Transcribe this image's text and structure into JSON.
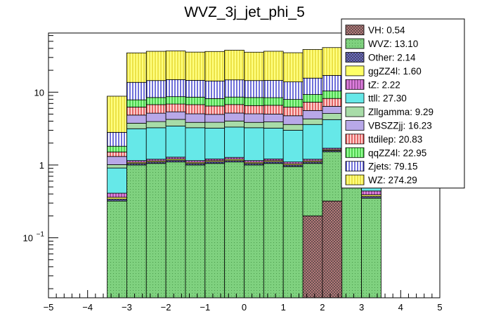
{
  "chart_data": {
    "type": "bar",
    "stacked": true,
    "title": "WVZ_3j_jet_phi_5",
    "xlabel": "",
    "ylabel": "",
    "ylog": true,
    "xlim": [
      -5,
      5
    ],
    "ylim": [
      0.015,
      65
    ],
    "grid": false,
    "legend_position": "top-right",
    "x_ticks": [
      -5,
      -4,
      -3,
      -2,
      -1,
      0,
      1,
      2,
      3,
      4,
      5
    ],
    "x_tick_labels": [
      "−5",
      "−4",
      "−3",
      "−2",
      "−1",
      "0",
      "1",
      "2",
      "3",
      "4",
      "5"
    ],
    "y_ticks": [
      {
        "value": 0.1,
        "base": "10",
        "exp": "−1"
      },
      {
        "value": 1,
        "label": "1"
      },
      {
        "value": 10,
        "label": "10"
      }
    ],
    "bin_edges": [
      -3.5,
      -3,
      -2.5,
      -2,
      -1.5,
      -1,
      -0.5,
      0,
      0.5,
      1,
      1.5,
      2,
      2.5,
      3,
      3.5
    ],
    "series": [
      {
        "name": "VH",
        "legend": "VH: 0.54",
        "fill": "#c08080",
        "pattern": "cross-dense",
        "values": [
          0,
          0,
          0,
          0,
          0,
          0,
          0,
          0,
          0,
          0,
          0.2,
          0.32,
          0,
          0
        ]
      },
      {
        "name": "WVZ",
        "legend": "WVZ: 13.10",
        "fill": "#7fd17f",
        "pattern": "dots",
        "values": [
          0.32,
          1.0,
          1.05,
          1.1,
          1.0,
          1.05,
          1.1,
          1.0,
          1.05,
          0.95,
          0.85,
          1.2,
          1.6,
          0.35
        ]
      },
      {
        "name": "Other",
        "legend": "Other: 2.14",
        "fill": "#6f6fcf",
        "pattern": "cross-dense",
        "values": [
          0.02,
          0.05,
          0.05,
          0.06,
          0.05,
          0.06,
          0.05,
          0.05,
          0.06,
          0.05,
          0.05,
          0.06,
          0.05,
          0.02
        ]
      },
      {
        "name": "ggZZ4l",
        "legend": "ggZZ4l: 1.60",
        "fill": "#ffff66",
        "pattern": "solid",
        "values": [
          0.02,
          0.04,
          0.04,
          0.05,
          0.04,
          0.04,
          0.05,
          0.04,
          0.04,
          0.04,
          0.04,
          0.05,
          0.05,
          0.02
        ]
      },
      {
        "name": "tZ",
        "legend": "tZ: 2.22",
        "fill": "#e080e0",
        "pattern": "hatch-vertical",
        "values": [
          0.05,
          0.06,
          0.06,
          0.07,
          0.06,
          0.06,
          0.07,
          0.06,
          0.06,
          0.06,
          0.06,
          0.07,
          0.07,
          0.05
        ]
      },
      {
        "name": "ttll",
        "legend": "ttll: 27.30",
        "fill": "#66e8e8",
        "pattern": "solid",
        "values": [
          0.5,
          2.0,
          2.05,
          2.15,
          2.1,
          2.0,
          2.05,
          2.1,
          2.0,
          1.9,
          2.4,
          2.5,
          2.4,
          0.4
        ]
      },
      {
        "name": "Zllgamma",
        "legend": "Zllgamma: 9.29",
        "fill": "#a8dca8",
        "pattern": "solid",
        "values": [
          0.1,
          0.6,
          0.7,
          0.8,
          0.6,
          0.65,
          0.7,
          0.6,
          0.7,
          0.6,
          0.7,
          0.9,
          3.0,
          0.2
        ]
      },
      {
        "name": "VBSZZjj",
        "legend": "VBSZZjj: 16.23",
        "fill": "#b8a8e8",
        "pattern": "solid",
        "values": [
          0.3,
          1.1,
          1.2,
          1.15,
          1.2,
          1.1,
          1.15,
          1.2,
          1.1,
          1.15,
          1.3,
          1.3,
          1.5,
          0.35
        ]
      },
      {
        "name": "ttdilep",
        "legend": "ttdilep: 20.83",
        "fill": "#ffd0d0",
        "pattern": "hatch-vertical-red",
        "values": [
          0.2,
          1.4,
          1.6,
          1.5,
          1.7,
          1.5,
          1.6,
          1.5,
          1.6,
          1.5,
          1.7,
          1.8,
          2.0,
          0.3
        ]
      },
      {
        "name": "qqZZ4l",
        "legend": "qqZZ4l: 22.95",
        "fill": "#99ff99",
        "pattern": "hatch-vertical-green",
        "values": [
          0.3,
          1.6,
          1.7,
          1.8,
          1.8,
          1.7,
          1.8,
          1.9,
          1.8,
          1.7,
          2.0,
          2.2,
          2.3,
          0.35
        ]
      },
      {
        "name": "Zjets",
        "legend": "Zjets: 79.15",
        "fill": "#ffffff",
        "pattern": "hatch-vertical-blue",
        "values": [
          1.0,
          5.8,
          6.0,
          6.2,
          6.0,
          6.1,
          6.2,
          6.0,
          6.1,
          5.9,
          6.3,
          6.6,
          6.5,
          1.2
        ]
      },
      {
        "name": "WZ",
        "legend": "WZ: 274.29",
        "fill": "#ffff80",
        "pattern": "hatch-vertical-yellow",
        "values": [
          6.0,
          21,
          22,
          22,
          21,
          22,
          23,
          21,
          22,
          21,
          23,
          24,
          25,
          5.0
        ]
      }
    ]
  }
}
